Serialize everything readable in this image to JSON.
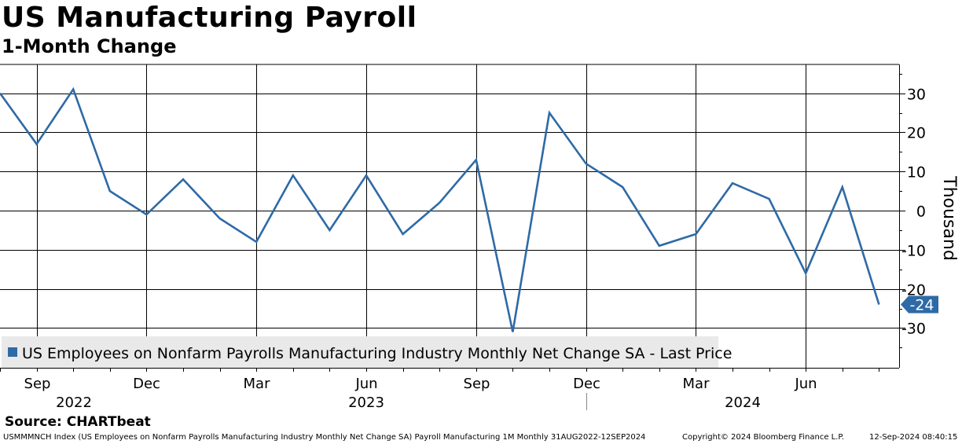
{
  "chart_data": {
    "type": "line",
    "title": "US Manufacturing Payroll",
    "subtitle": "1-Month Change",
    "ylabel": "Thousand",
    "ylim": [
      -40,
      38
    ],
    "yticks": [
      30,
      20,
      10,
      0,
      -10,
      -20,
      -30
    ],
    "grid": true,
    "legend_position": "bottom-left",
    "series": [
      {
        "name": "US Employees on Nonfarm Payrolls Manufacturing Industry Monthly Net Change SA - Last Price",
        "color": "#2e6aa6",
        "dates": [
          "2022-08",
          "2022-09",
          "2022-10",
          "2022-11",
          "2022-12",
          "2023-01",
          "2023-02",
          "2023-03",
          "2023-04",
          "2023-05",
          "2023-06",
          "2023-07",
          "2023-08",
          "2023-09",
          "2023-10",
          "2023-11",
          "2023-12",
          "2023-13",
          "2024-02",
          "2024-03",
          "2024-04",
          "2024-05",
          "2024-06",
          "2024-07",
          "2024-08"
        ],
        "values": [
          30,
          17,
          31,
          5,
          -1,
          8,
          -2,
          -8,
          9,
          -5,
          9,
          -6,
          2,
          13,
          -31,
          25,
          12,
          6,
          -9,
          -6,
          7,
          3,
          -16,
          6,
          -24
        ]
      }
    ],
    "last_value_label": "-24",
    "x_month_ticks": [
      "Sep",
      "Dec",
      "Mar",
      "Jun",
      "Sep",
      "Dec",
      "Mar",
      "Jun"
    ],
    "x_year_labels": [
      "2022",
      "2023",
      "2024"
    ]
  },
  "source": "Source: CHARTbeat",
  "footer": {
    "description": "USMMMNCH Index (US Employees on Nonfarm Payrolls Manufacturing Industry Monthly Net Change SA) Payroll Manufacturing 1M  Monthly 31AUG2022-12SEP2024",
    "copyright": "Copyright© 2024 Bloomberg Finance L.P.",
    "timestamp": "12-Sep-2024 08:40:15"
  }
}
